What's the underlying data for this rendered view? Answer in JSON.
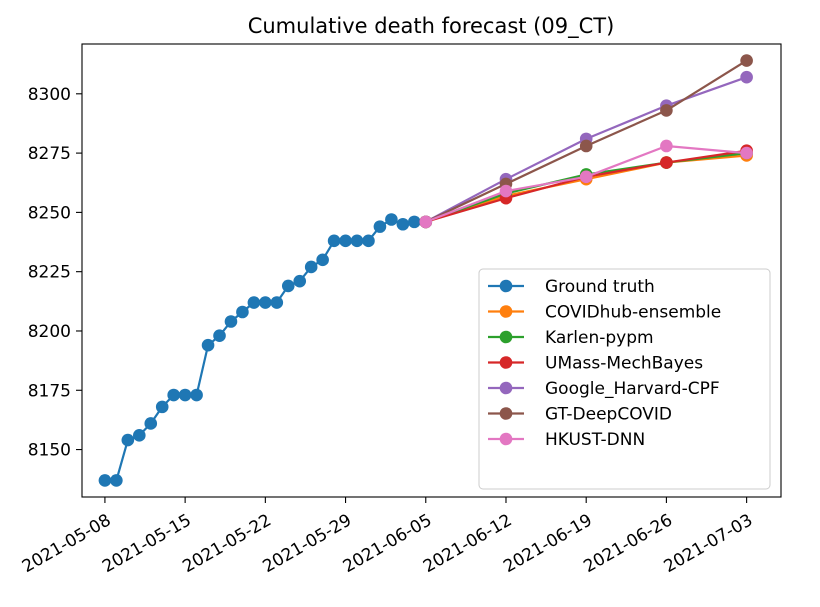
{
  "chart_data": {
    "type": "line",
    "title": "Cumulative death forecast (09_CT)",
    "xlabel": "",
    "ylabel": "",
    "x_ticks": [
      "2021-05-08",
      "2021-05-15",
      "2021-05-22",
      "2021-05-29",
      "2021-06-05",
      "2021-06-12",
      "2021-06-19",
      "2021-06-26",
      "2021-07-03"
    ],
    "y_ticks": [
      8150,
      8175,
      8200,
      8225,
      8250,
      8275,
      8300
    ],
    "xlim": [
      "2021-05-06",
      "2021-07-06"
    ],
    "ylim": [
      8130,
      8321
    ],
    "grid": false,
    "legend_position": "lower right",
    "series": [
      {
        "name": "Ground truth",
        "color": "#1f77b4",
        "points": [
          [
            "2021-05-08",
            8137
          ],
          [
            "2021-05-09",
            8137
          ],
          [
            "2021-05-10",
            8154
          ],
          [
            "2021-05-11",
            8156
          ],
          [
            "2021-05-12",
            8161
          ],
          [
            "2021-05-13",
            8168
          ],
          [
            "2021-05-14",
            8173
          ],
          [
            "2021-05-15",
            8173
          ],
          [
            "2021-05-16",
            8173
          ],
          [
            "2021-05-17",
            8194
          ],
          [
            "2021-05-18",
            8198
          ],
          [
            "2021-05-19",
            8204
          ],
          [
            "2021-05-20",
            8208
          ],
          [
            "2021-05-21",
            8212
          ],
          [
            "2021-05-22",
            8212
          ],
          [
            "2021-05-23",
            8212
          ],
          [
            "2021-05-24",
            8219
          ],
          [
            "2021-05-25",
            8221
          ],
          [
            "2021-05-26",
            8227
          ],
          [
            "2021-05-27",
            8230
          ],
          [
            "2021-05-28",
            8238
          ],
          [
            "2021-05-29",
            8238
          ],
          [
            "2021-05-30",
            8238
          ],
          [
            "2021-05-31",
            8238
          ],
          [
            "2021-06-01",
            8244
          ],
          [
            "2021-06-02",
            8247
          ],
          [
            "2021-06-03",
            8245
          ],
          [
            "2021-06-04",
            8246
          ],
          [
            "2021-06-05",
            8246
          ]
        ]
      },
      {
        "name": "COVIDhub-ensemble",
        "color": "#ff7f0e",
        "points": [
          [
            "2021-06-05",
            8246
          ],
          [
            "2021-06-12",
            8257
          ],
          [
            "2021-06-19",
            8264
          ],
          [
            "2021-06-26",
            8271
          ],
          [
            "2021-07-03",
            8274
          ]
        ]
      },
      {
        "name": "Karlen-pypm",
        "color": "#2ca02c",
        "points": [
          [
            "2021-06-05",
            8246
          ],
          [
            "2021-06-12",
            8258
          ],
          [
            "2021-06-19",
            8266
          ],
          [
            "2021-06-26",
            8271
          ],
          [
            "2021-07-03",
            8275
          ]
        ]
      },
      {
        "name": "UMass-MechBayes",
        "color": "#d62728",
        "points": [
          [
            "2021-06-05",
            8246
          ],
          [
            "2021-06-12",
            8256
          ],
          [
            "2021-06-19",
            8265
          ],
          [
            "2021-06-26",
            8271
          ],
          [
            "2021-07-03",
            8276
          ]
        ]
      },
      {
        "name": "Google_Harvard-CPF",
        "color": "#9467bd",
        "points": [
          [
            "2021-06-05",
            8246
          ],
          [
            "2021-06-12",
            8264
          ],
          [
            "2021-06-19",
            8281
          ],
          [
            "2021-06-26",
            8295
          ],
          [
            "2021-07-03",
            8307
          ]
        ]
      },
      {
        "name": "GT-DeepCOVID",
        "color": "#8c564b",
        "points": [
          [
            "2021-06-05",
            8246
          ],
          [
            "2021-06-12",
            8262
          ],
          [
            "2021-06-19",
            8278
          ],
          [
            "2021-06-26",
            8293
          ],
          [
            "2021-07-03",
            8314
          ]
        ]
      },
      {
        "name": "HKUST-DNN",
        "color": "#e377c2",
        "points": [
          [
            "2021-06-05",
            8246
          ],
          [
            "2021-06-12",
            8259
          ],
          [
            "2021-06-19",
            8265
          ],
          [
            "2021-06-26",
            8278
          ],
          [
            "2021-07-03",
            8275
          ]
        ]
      }
    ]
  }
}
